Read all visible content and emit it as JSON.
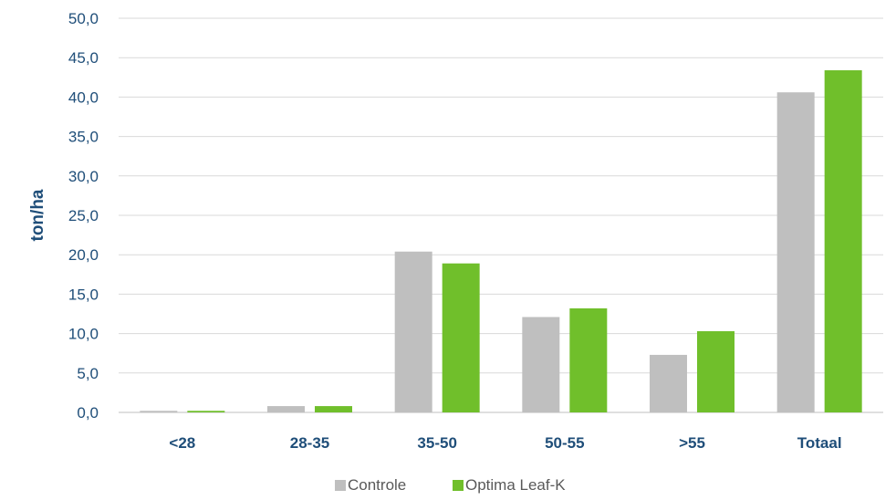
{
  "chart_data": {
    "type": "bar",
    "title": "",
    "xlabel": "",
    "ylabel": "ton/ha",
    "ylim": [
      0,
      50
    ],
    "ytick_step": 5,
    "yticks": [
      "0,0",
      "5,0",
      "10,0",
      "15,0",
      "20,0",
      "25,0",
      "30,0",
      "35,0",
      "40,0",
      "45,0",
      "50,0"
    ],
    "categories": [
      "<28",
      "28-35",
      "35-50",
      "50-55",
      ">55",
      "Totaal"
    ],
    "series": [
      {
        "name": "Controle",
        "color": "#bfbfbf",
        "values": [
          0.2,
          0.8,
          20.4,
          12.1,
          7.3,
          40.6
        ]
      },
      {
        "name": "Optima Leaf-K",
        "color": "#70bf2b",
        "values": [
          0.2,
          0.8,
          18.9,
          13.2,
          10.3,
          43.4
        ]
      }
    ],
    "grid": true,
    "legend_position": "bottom"
  }
}
